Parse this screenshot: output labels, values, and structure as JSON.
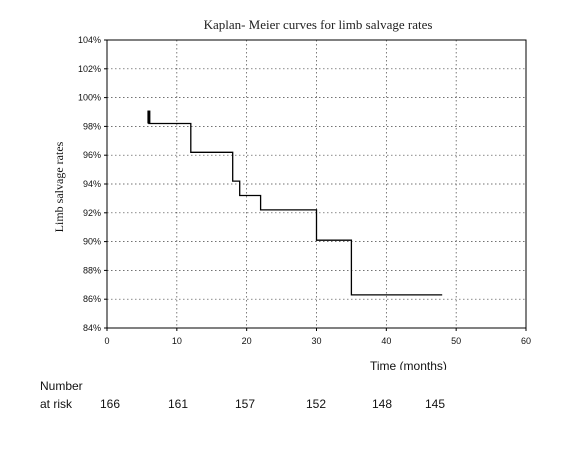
{
  "chart_data": {
    "type": "line",
    "title": "Kaplan- Meier curves for limb salvage rates",
    "xlabel": "Time (months)",
    "ylabel": "Limb salvage rates",
    "xlim": [
      0,
      60
    ],
    "ylim": [
      84,
      104
    ],
    "x_ticks": [
      0,
      10,
      20,
      30,
      40,
      50,
      60
    ],
    "y_ticks": [
      84,
      86,
      88,
      90,
      92,
      94,
      96,
      98,
      100,
      102,
      104
    ],
    "y_tick_suffix": "%",
    "grid": true,
    "series": [
      {
        "step": true,
        "points": [
          {
            "x": 6,
            "y": 99.1
          },
          {
            "x": 6,
            "y": 98.2
          },
          {
            "x": 12,
            "y": 98.2
          },
          {
            "x": 12,
            "y": 96.2
          },
          {
            "x": 18,
            "y": 96.2
          },
          {
            "x": 18,
            "y": 94.2
          },
          {
            "x": 19,
            "y": 94.2
          },
          {
            "x": 19,
            "y": 93.2
          },
          {
            "x": 22,
            "y": 93.2
          },
          {
            "x": 22,
            "y": 92.2
          },
          {
            "x": 30,
            "y": 92.2
          },
          {
            "x": 30,
            "y": 90.1
          },
          {
            "x": 35,
            "y": 90.1
          },
          {
            "x": 35,
            "y": 86.3
          },
          {
            "x": 48,
            "y": 86.3
          }
        ]
      }
    ]
  },
  "risk_table": {
    "label_line1": "Number",
    "label_line2": "at risk",
    "values": [
      "166",
      "161",
      "157",
      "152",
      "148",
      "145"
    ]
  }
}
